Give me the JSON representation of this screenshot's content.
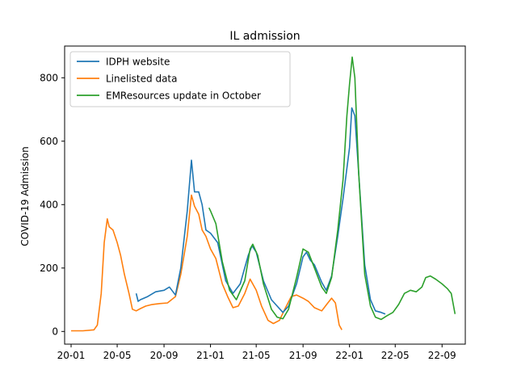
{
  "chart_data": {
    "type": "line",
    "title": "IL admission",
    "xlabel": "",
    "ylabel": "COVID-19 Admission",
    "xlim": [
      "2019-12-15",
      "2022-11-01"
    ],
    "ylim": [
      -40,
      900
    ],
    "x_ticks": [
      {
        "date": "2020-01-01",
        "label": "20-01"
      },
      {
        "date": "2020-05-01",
        "label": "20-05"
      },
      {
        "date": "2020-09-01",
        "label": "20-09"
      },
      {
        "date": "2021-01-01",
        "label": "21-01"
      },
      {
        "date": "2021-05-01",
        "label": "21-05"
      },
      {
        "date": "2021-09-01",
        "label": "21-09"
      },
      {
        "date": "2022-01-01",
        "label": "22-01"
      },
      {
        "date": "2022-05-01",
        "label": "22-05"
      },
      {
        "date": "2022-09-01",
        "label": "22-09"
      }
    ],
    "y_ticks": [
      0,
      200,
      400,
      600,
      800
    ],
    "grid": false,
    "legend_position": "upper-left",
    "series": [
      {
        "name": "Linelisted data",
        "color": "#ff7f0e",
        "points": [
          [
            "2020-01-01",
            2
          ],
          [
            "2020-02-01",
            2
          ],
          [
            "2020-03-01",
            5
          ],
          [
            "2020-03-10",
            20
          ],
          [
            "2020-03-20",
            120
          ],
          [
            "2020-03-28",
            280
          ],
          [
            "2020-04-05",
            355
          ],
          [
            "2020-04-10",
            330
          ],
          [
            "2020-04-20",
            320
          ],
          [
            "2020-05-01",
            280
          ],
          [
            "2020-05-10",
            240
          ],
          [
            "2020-05-20",
            180
          ],
          [
            "2020-06-01",
            120
          ],
          [
            "2020-06-10",
            70
          ],
          [
            "2020-06-20",
            65
          ],
          [
            "2020-07-01",
            72
          ],
          [
            "2020-07-15",
            80
          ],
          [
            "2020-08-01",
            85
          ],
          [
            "2020-08-20",
            88
          ],
          [
            "2020-09-10",
            90
          ],
          [
            "2020-10-01",
            110
          ],
          [
            "2020-10-15",
            180
          ],
          [
            "2020-11-01",
            300
          ],
          [
            "2020-11-12",
            430
          ],
          [
            "2020-11-20",
            395
          ],
          [
            "2020-12-01",
            370
          ],
          [
            "2020-12-10",
            320
          ],
          [
            "2020-12-20",
            300
          ],
          [
            "2021-01-01",
            260
          ],
          [
            "2021-01-15",
            230
          ],
          [
            "2021-02-01",
            150
          ],
          [
            "2021-02-15",
            110
          ],
          [
            "2021-03-01",
            75
          ],
          [
            "2021-03-15",
            80
          ],
          [
            "2021-04-01",
            120
          ],
          [
            "2021-04-15",
            165
          ],
          [
            "2021-05-01",
            130
          ],
          [
            "2021-05-15",
            80
          ],
          [
            "2021-06-01",
            35
          ],
          [
            "2021-06-15",
            25
          ],
          [
            "2021-07-01",
            35
          ],
          [
            "2021-07-15",
            70
          ],
          [
            "2021-08-01",
            110
          ],
          [
            "2021-08-15",
            115
          ],
          [
            "2021-09-01",
            105
          ],
          [
            "2021-09-15",
            95
          ],
          [
            "2021-10-01",
            75
          ],
          [
            "2021-10-20",
            65
          ],
          [
            "2021-11-05",
            90
          ],
          [
            "2021-11-15",
            105
          ],
          [
            "2021-11-25",
            90
          ],
          [
            "2021-12-05",
            20
          ],
          [
            "2021-12-12",
            5
          ]
        ]
      },
      {
        "name": "IDPH website",
        "color": "#1f77b4",
        "points": [
          [
            "2020-06-20",
            120
          ],
          [
            "2020-06-25",
            95
          ],
          [
            "2020-07-01",
            100
          ],
          [
            "2020-07-20",
            110
          ],
          [
            "2020-08-10",
            125
          ],
          [
            "2020-09-01",
            130
          ],
          [
            "2020-09-15",
            140
          ],
          [
            "2020-10-01",
            115
          ],
          [
            "2020-10-15",
            200
          ],
          [
            "2020-11-01",
            380
          ],
          [
            "2020-11-12",
            540
          ],
          [
            "2020-11-20",
            440
          ],
          [
            "2020-12-01",
            440
          ],
          [
            "2020-12-10",
            400
          ],
          [
            "2020-12-20",
            320
          ],
          [
            "2021-01-01",
            310
          ],
          [
            "2021-01-20",
            280
          ],
          [
            "2021-02-10",
            160
          ],
          [
            "2021-03-01",
            120
          ],
          [
            "2021-03-20",
            150
          ],
          [
            "2021-04-10",
            240
          ],
          [
            "2021-04-20",
            270
          ],
          [
            "2021-05-01",
            250
          ],
          [
            "2021-05-20",
            160
          ],
          [
            "2021-06-10",
            100
          ],
          [
            "2021-06-25",
            80
          ],
          [
            "2021-07-10",
            60
          ],
          [
            "2021-07-25",
            80
          ],
          [
            "2021-08-15",
            150
          ],
          [
            "2021-09-01",
            235
          ],
          [
            "2021-09-10",
            250
          ],
          [
            "2021-09-20",
            225
          ],
          [
            "2021-10-01",
            210
          ],
          [
            "2021-10-20",
            155
          ],
          [
            "2021-11-01",
            130
          ],
          [
            "2021-11-15",
            175
          ],
          [
            "2021-12-01",
            300
          ],
          [
            "2021-12-15",
            420
          ],
          [
            "2022-01-01",
            580
          ],
          [
            "2022-01-07",
            705
          ],
          [
            "2022-01-15",
            680
          ],
          [
            "2022-01-25",
            500
          ],
          [
            "2022-02-10",
            210
          ],
          [
            "2022-02-25",
            100
          ],
          [
            "2022-03-10",
            65
          ],
          [
            "2022-03-25",
            60
          ],
          [
            "2022-04-05",
            55
          ]
        ]
      },
      {
        "name": "EMResources update in October",
        "color": "#2ca02c",
        "points": [
          [
            "2020-12-28",
            390
          ],
          [
            "2021-01-01",
            380
          ],
          [
            "2021-01-15",
            340
          ],
          [
            "2021-02-01",
            220
          ],
          [
            "2021-02-20",
            130
          ],
          [
            "2021-03-10",
            100
          ],
          [
            "2021-04-01",
            160
          ],
          [
            "2021-04-15",
            260
          ],
          [
            "2021-04-22",
            275
          ],
          [
            "2021-05-05",
            240
          ],
          [
            "2021-05-20",
            150
          ],
          [
            "2021-06-10",
            70
          ],
          [
            "2021-06-25",
            45
          ],
          [
            "2021-07-10",
            40
          ],
          [
            "2021-07-25",
            70
          ],
          [
            "2021-08-15",
            170
          ],
          [
            "2021-09-01",
            260
          ],
          [
            "2021-09-15",
            250
          ],
          [
            "2021-10-01",
            200
          ],
          [
            "2021-10-20",
            140
          ],
          [
            "2021-11-01",
            120
          ],
          [
            "2021-11-15",
            170
          ],
          [
            "2021-12-01",
            320
          ],
          [
            "2021-12-15",
            480
          ],
          [
            "2021-12-25",
            680
          ],
          [
            "2022-01-01",
            780
          ],
          [
            "2022-01-08",
            865
          ],
          [
            "2022-01-15",
            800
          ],
          [
            "2022-01-25",
            500
          ],
          [
            "2022-02-10",
            180
          ],
          [
            "2022-02-25",
            80
          ],
          [
            "2022-03-10",
            45
          ],
          [
            "2022-03-25",
            38
          ],
          [
            "2022-04-10",
            50
          ],
          [
            "2022-04-25",
            60
          ],
          [
            "2022-05-10",
            85
          ],
          [
            "2022-05-25",
            120
          ],
          [
            "2022-06-10",
            130
          ],
          [
            "2022-06-25",
            125
          ],
          [
            "2022-07-10",
            140
          ],
          [
            "2022-07-20",
            170
          ],
          [
            "2022-08-01",
            175
          ],
          [
            "2022-08-15",
            165
          ],
          [
            "2022-09-01",
            150
          ],
          [
            "2022-09-15",
            135
          ],
          [
            "2022-09-25",
            120
          ],
          [
            "2022-10-05",
            55
          ]
        ]
      }
    ],
    "legend_order": [
      "IDPH website",
      "Linelisted data",
      "EMResources update in October"
    ]
  }
}
